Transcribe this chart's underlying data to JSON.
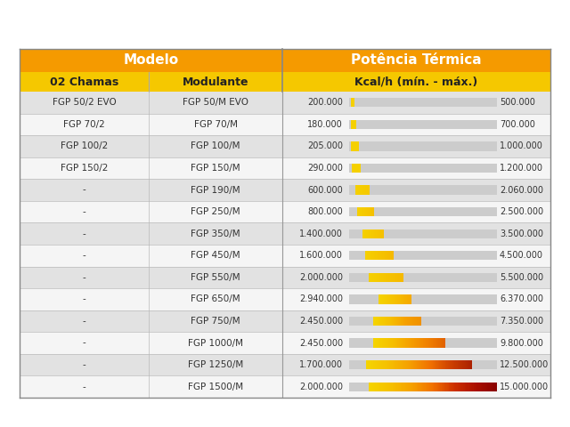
{
  "title_modelo": "Modelo",
  "title_potencia": "Potência Térmica",
  "subtitle_02chamas": "02 Chamas",
  "subtitle_modulante": "Modulante",
  "subtitle_kcal": "Kcal/h (mín. - máx.)",
  "header_bg": "#F59A00",
  "subheader_bg": "#F5C800",
  "row_bg_odd": "#E2E2E2",
  "row_bg_even": "#F5F5F5",
  "rows": [
    {
      "col1": "FGP 50/2 EVO",
      "col2": "FGP 50/M EVO",
      "min_val": 200000,
      "max_val": 500000
    },
    {
      "col1": "FGP 70/2",
      "col2": "FGP 70/M",
      "min_val": 180000,
      "max_val": 700000
    },
    {
      "col1": "FGP 100/2",
      "col2": "FGP 100/M",
      "min_val": 205000,
      "max_val": 1000000
    },
    {
      "col1": "FGP 150/2",
      "col2": "FGP 150/M",
      "min_val": 290000,
      "max_val": 1200000
    },
    {
      "col1": "-",
      "col2": "FGP 190/M",
      "min_val": 600000,
      "max_val": 2060000
    },
    {
      "col1": "-",
      "col2": "FGP 250/M",
      "min_val": 800000,
      "max_val": 2500000
    },
    {
      "col1": "-",
      "col2": "FGP 350/M",
      "min_val": 1400000,
      "max_val": 3500000
    },
    {
      "col1": "-",
      "col2": "FGP 450/M",
      "min_val": 1600000,
      "max_val": 4500000
    },
    {
      "col1": "-",
      "col2": "FGP 550/M",
      "min_val": 2000000,
      "max_val": 5500000
    },
    {
      "col1": "-",
      "col2": "FGP 650/M",
      "min_val": 2940000,
      "max_val": 6370000
    },
    {
      "col1": "-",
      "col2": "FGP 750/M",
      "min_val": 2450000,
      "max_val": 7350000
    },
    {
      "col1": "-",
      "col2": "FGP 1000/M",
      "min_val": 2450000,
      "max_val": 9800000
    },
    {
      "col1": "-",
      "col2": "FGP 1250/M",
      "min_val": 1700000,
      "max_val": 12500000
    },
    {
      "col1": "-",
      "col2": "FGP 1500/M",
      "min_val": 2000000,
      "max_val": 15000000
    }
  ],
  "bar_max_scale": 15000000,
  "fig_bg": "#FFFFFF"
}
